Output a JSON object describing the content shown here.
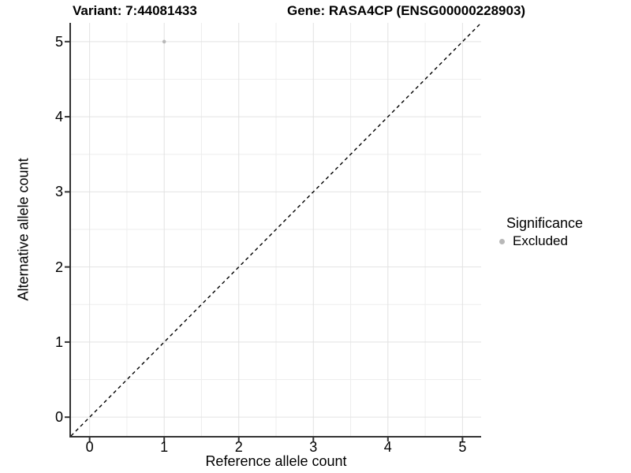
{
  "chart_data": {
    "type": "scatter",
    "titles": {
      "variant": "Variant: 7:44081433",
      "gene": "Gene: RASA4CP (ENSG00000228903)"
    },
    "xlabel": "Reference allele count",
    "ylabel": "Alternative allele count",
    "xlim": [
      -0.25,
      5.25
    ],
    "ylim": [
      -0.25,
      5.25
    ],
    "x_ticks": [
      0,
      1,
      2,
      3,
      4,
      5
    ],
    "y_ticks": [
      0,
      1,
      2,
      3,
      4,
      5
    ],
    "minor_gridlines": [
      0.5,
      1.5,
      2.5,
      3.5,
      4.5
    ],
    "grid": true,
    "identity_line": {
      "style": "dashed",
      "from": [
        -0.25,
        -0.25
      ],
      "to": [
        5.25,
        5.25
      ],
      "color": "#000000"
    },
    "series": [
      {
        "name": "Excluded",
        "color": "#b8b8b8",
        "points": [
          {
            "x": 1,
            "y": 5
          }
        ]
      }
    ],
    "legend": {
      "position": "right",
      "title": "Significance",
      "items": [
        {
          "label": "Excluded",
          "color": "#b8b8b8",
          "marker": "circle"
        }
      ]
    },
    "colors": {
      "axis": "#333333",
      "grid_major": "#e2e2e2",
      "grid_minor": "#eeeeee",
      "text": "#000000"
    }
  }
}
